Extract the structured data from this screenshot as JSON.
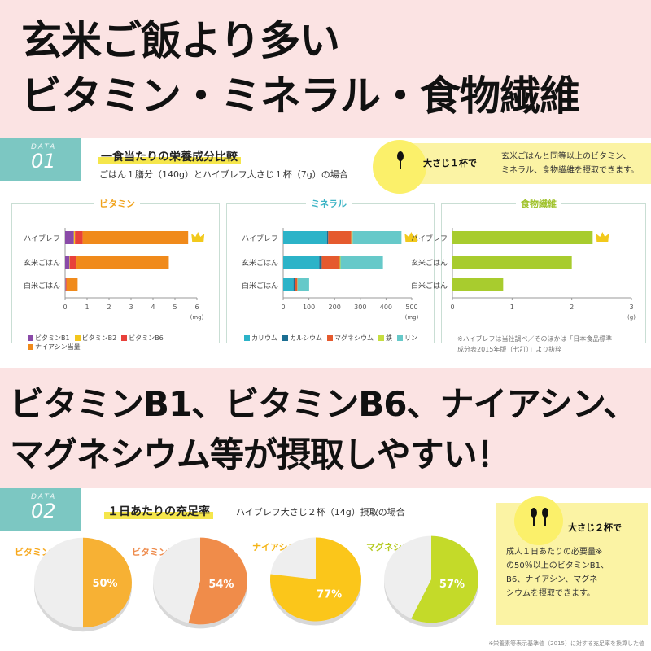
{
  "headline1": {
    "line1": "玄米ご飯より多い",
    "line2": "ビタミン・ミネラル・食物繊維"
  },
  "headline2": {
    "line1": "ビタミンB1、ビタミンB6、ナイアシン、",
    "line2": "マグネシウム等が摂取しやすい！"
  },
  "section1": {
    "badge_label": "DATA",
    "badge_num": "01",
    "title": "一食当たりの栄養成分比較",
    "subtitle": "ごはん１膳分（140g）とハイブレフ大さじ１杯（7g）の場合",
    "spoon_label": "大さじ１杯で",
    "callout_line1": "玄米ごはんと同等以上のビタミン、",
    "callout_line2": "ミネラル、食物繊維を摂取できます。",
    "note_line1": "※ハイブレフは当社調べ／そのほかは「日本食品標準",
    "note_line2": "成分表2015年版（七訂）」より抜粋"
  },
  "section2": {
    "badge_label": "DATA",
    "badge_num": "02",
    "title": "１日あたりの充足率",
    "subtitle": "ハイブレフ大さじ２杯（14g）摂取の場合",
    "spoon_label": "大さじ２杯で",
    "callout_line1": "成人１日あたりの必要量※",
    "callout_line2": "の50％以上のビタミンB1、",
    "callout_line3": "B6、ナイアシン、マグネ",
    "callout_line4": "シウムを摂取できます。",
    "footnote": "※栄養素等表示基準値（2015）に対する充足率を換算した値"
  },
  "colors": {
    "teal": "#7cc7c2",
    "vit_b1": "#8a4aa8",
    "vit_b2": "#f3c61c",
    "vit_b6": "#e8413b",
    "niacin": "#f08a1b",
    "potassium": "#2cb3c8",
    "calcium": "#1b6e92",
    "magnesium": "#e55a2e",
    "iron": "#c6de40",
    "phosphorus": "#66c9c9",
    "fiber": "#a8cc2e"
  },
  "chart_data": [
    {
      "type": "bar",
      "stacked": true,
      "orientation": "horizontal",
      "title": "ビタミン",
      "categories": [
        "ハイブレフ",
        "玄米ごはん",
        "白米ごはん"
      ],
      "xlabel": "(mg)",
      "xlim": [
        0,
        6
      ],
      "xticks": [
        "0",
        "1",
        "2",
        "3",
        "4",
        "5",
        "6"
      ],
      "series": [
        {
          "name": "ビタミンB1",
          "values": [
            0.4,
            0.2,
            0.03
          ]
        },
        {
          "name": "ビタミンB2",
          "values": [
            0.05,
            0.02,
            0.01
          ]
        },
        {
          "name": "ビタミンB6",
          "values": [
            0.35,
            0.3,
            0.03
          ]
        },
        {
          "name": "ナイアシン当量",
          "values": [
            4.8,
            4.2,
            0.5
          ]
        }
      ],
      "crown_on": "ハイブレフ"
    },
    {
      "type": "bar",
      "stacked": true,
      "orientation": "horizontal",
      "title": "ミネラル",
      "categories": [
        "ハイブレフ",
        "玄米ごはん",
        "白米ごはん"
      ],
      "xlabel": "(mg)",
      "xlim": [
        0,
        500
      ],
      "xticks": [
        "0",
        "100",
        "200",
        "300",
        "400",
        "500"
      ],
      "series": [
        {
          "name": "カリウム",
          "values": [
            170,
            140,
            40
          ]
        },
        {
          "name": "カルシウム",
          "values": [
            5,
            10,
            5
          ]
        },
        {
          "name": "マグネシウム",
          "values": [
            90,
            70,
            10
          ]
        },
        {
          "name": "鉄",
          "values": [
            5,
            3,
            1
          ]
        },
        {
          "name": "リン",
          "values": [
            190,
            165,
            45
          ]
        }
      ],
      "crown_on": "ハイブレフ"
    },
    {
      "type": "bar",
      "orientation": "horizontal",
      "title": "食物繊維",
      "categories": [
        "ハイブレフ",
        "玄米ごはん",
        "白米ごはん"
      ],
      "xlabel": "(g)",
      "xlim": [
        0,
        3
      ],
      "xticks": [
        "0",
        "1",
        "2",
        "3"
      ],
      "series": [
        {
          "name": "食物繊維",
          "values": [
            2.35,
            2.0,
            0.85
          ]
        }
      ],
      "crown_on": "ハイブレフ"
    },
    {
      "type": "pie",
      "title": "ビタミンB1",
      "values": [
        50
      ],
      "value_label": "50%",
      "color": "#f7b134"
    },
    {
      "type": "pie",
      "title": "ビタミンB6",
      "values": [
        54
      ],
      "value_label": "54%",
      "color": "#f08c4a"
    },
    {
      "type": "pie",
      "title": "ナイアシン",
      "values": [
        77
      ],
      "value_label": "77%",
      "color": "#fbc61a"
    },
    {
      "type": "pie",
      "title": "マグネシウム",
      "values": [
        57
      ],
      "value_label": "57%",
      "color": "#c4da29"
    }
  ]
}
